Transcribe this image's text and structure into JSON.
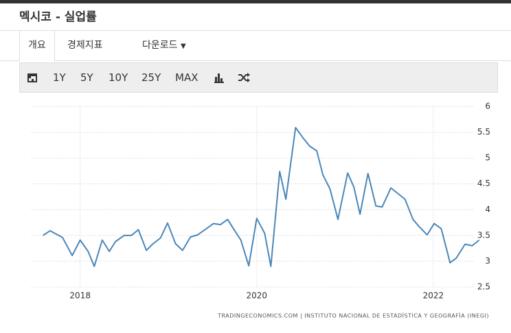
{
  "header": {
    "title": "멕시코 - 실업률"
  },
  "tabs": [
    "개요",
    "경제지표",
    "다운로드"
  ],
  "toolbar": [
    "1Y",
    "5Y",
    "10Y",
    "25Y",
    "MAX"
  ],
  "chart_data": {
    "type": "line",
    "source": "TRADINGECONOMICS.COM  |  INSTITUTO NACIONAL DE ESTADÍSTICA Y GEOGRAFÍA (INEGI)",
    "x": [
      2017.58,
      2017.66,
      2017.8,
      2017.91,
      2018.0,
      2018.09,
      2018.16,
      2018.25,
      2018.33,
      2018.4,
      2018.5,
      2018.58,
      2018.66,
      2018.75,
      2018.82,
      2018.91,
      2018.99,
      2019.08,
      2019.16,
      2019.25,
      2019.33,
      2019.43,
      2019.51,
      2019.59,
      2019.67,
      2019.74,
      2019.82,
      2019.91,
      2020.0,
      2020.09,
      2020.16,
      2020.26,
      2020.33,
      2020.44,
      2020.52,
      2020.6,
      2020.68,
      2020.75,
      2020.83,
      2020.92,
      2021.03,
      2021.1,
      2021.17,
      2021.26,
      2021.35,
      2021.42,
      2021.52,
      2021.6,
      2021.68,
      2021.77,
      2021.84,
      2021.93,
      2022.01,
      2022.09,
      2022.19,
      2022.26,
      2022.36,
      2022.44,
      2022.52
    ],
    "series": [
      {
        "name": "실업률",
        "color": "#4a86b8",
        "values": [
          3.5,
          3.59,
          3.46,
          3.11,
          3.41,
          3.19,
          2.9,
          3.41,
          3.19,
          3.38,
          3.5,
          3.5,
          3.61,
          3.21,
          3.33,
          3.45,
          3.74,
          3.34,
          3.21,
          3.47,
          3.51,
          3.63,
          3.73,
          3.71,
          3.81,
          3.62,
          3.41,
          2.91,
          3.83,
          3.54,
          2.9,
          4.74,
          4.2,
          5.59,
          5.4,
          5.23,
          5.14,
          4.67,
          4.4,
          3.81,
          4.71,
          4.44,
          3.91,
          4.7,
          4.07,
          4.05,
          4.42,
          4.31,
          4.2,
          3.81,
          3.67,
          3.51,
          3.73,
          3.63,
          2.97,
          3.06,
          3.33,
          3.3,
          3.41
        ]
      }
    ],
    "xlim": [
      2017.45,
      2022.6
    ],
    "xticks": [
      2018,
      2020,
      2022
    ],
    "ylim": [
      2.5,
      6
    ],
    "yticks": [
      2.5,
      3,
      3.5,
      4,
      4.5,
      5,
      5.5,
      6
    ],
    "grid": true
  }
}
